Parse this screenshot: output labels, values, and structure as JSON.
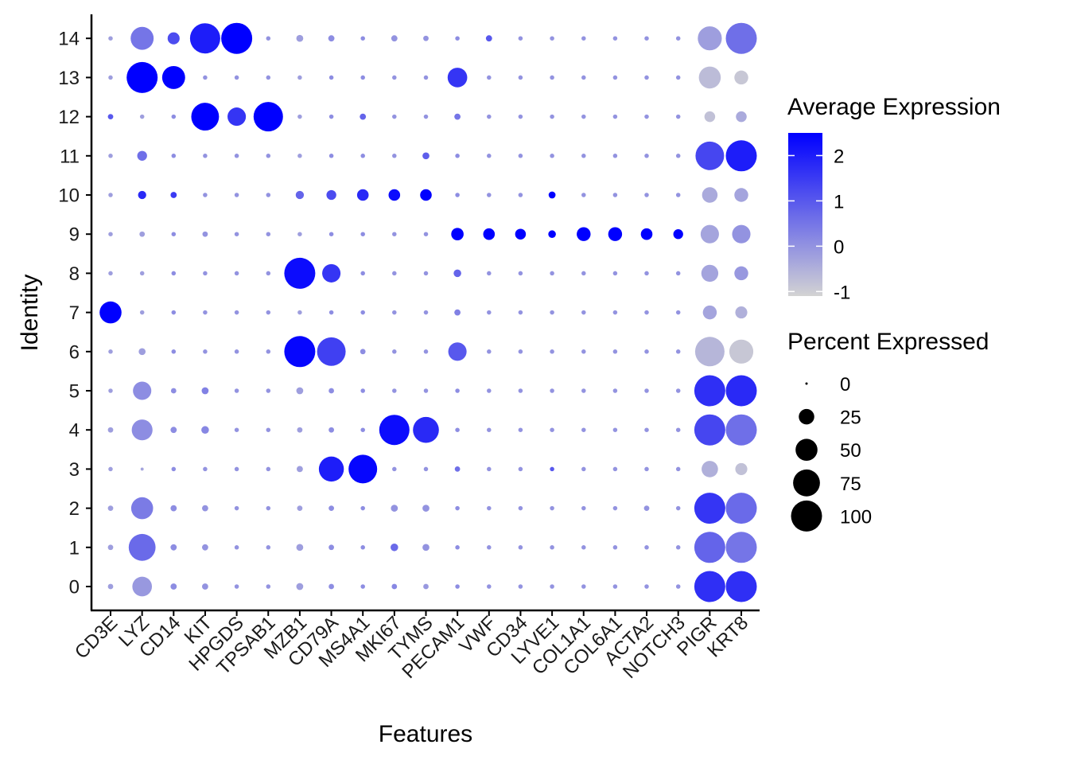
{
  "chart_data": {
    "type": "dotplot",
    "xlabel": "Features",
    "ylabel": "Identity",
    "features": [
      "CD3E",
      "LYZ",
      "CD14",
      "KIT",
      "HPGDS",
      "TPSAB1",
      "MZB1",
      "CD79A",
      "MS4A1",
      "MKI67",
      "TYMS",
      "PECAM1",
      "VWF",
      "CD34",
      "LYVE1",
      "COL1A1",
      "COL6A1",
      "ACTA2",
      "NOTCH3",
      "PIGR",
      "KRT8"
    ],
    "identities": [
      "0",
      "1",
      "2",
      "3",
      "4",
      "5",
      "6",
      "7",
      "8",
      "9",
      "10",
      "11",
      "12",
      "13",
      "14"
    ],
    "color_legend": {
      "title": "Average Expression",
      "low_color": "#d3d3d3",
      "high_color": "#0000ff",
      "range": [
        -1.1,
        2.5
      ],
      "ticks": [
        -1,
        0,
        1,
        2
      ]
    },
    "size_legend": {
      "title": "Percent Expressed",
      "values": [
        0,
        25,
        50,
        75,
        100
      ]
    },
    "percent_expressed": [
      [
        3,
        40,
        4,
        4,
        2,
        2,
        5,
        3,
        2,
        3,
        3,
        2,
        2,
        2,
        2,
        2,
        2,
        2,
        2,
        100,
        100
      ],
      [
        3,
        75,
        4,
        4,
        2,
        2,
        5,
        3,
        2,
        6,
        5,
        2,
        2,
        2,
        2,
        2,
        2,
        2,
        2,
        100,
        100
      ],
      [
        3,
        50,
        4,
        4,
        2,
        2,
        3,
        3,
        2,
        5,
        5,
        2,
        2,
        2,
        2,
        2,
        2,
        3,
        2,
        100,
        100
      ],
      [
        2,
        1,
        2,
        2,
        2,
        2,
        4,
        65,
        85,
        2,
        2,
        3,
        2,
        2,
        2,
        2,
        2,
        2,
        2,
        28,
        15
      ],
      [
        3,
        45,
        4,
        6,
        2,
        2,
        3,
        3,
        2,
        95,
        70,
        2,
        2,
        2,
        2,
        2,
        2,
        2,
        2,
        100,
        100
      ],
      [
        2,
        35,
        3,
        5,
        2,
        2,
        5,
        3,
        2,
        2,
        2,
        2,
        2,
        2,
        2,
        2,
        2,
        2,
        2,
        100,
        100
      ],
      [
        2,
        5,
        2,
        2,
        2,
        2,
        100,
        85,
        3,
        2,
        2,
        35,
        2,
        2,
        2,
        2,
        2,
        2,
        2,
        90,
        60
      ],
      [
        50,
        2,
        2,
        2,
        2,
        2,
        2,
        2,
        2,
        2,
        2,
        4,
        2,
        2,
        2,
        2,
        2,
        2,
        2,
        20,
        15
      ],
      [
        2,
        2,
        2,
        2,
        2,
        2,
        100,
        35,
        2,
        2,
        2,
        6,
        2,
        2,
        2,
        2,
        2,
        2,
        2,
        30,
        20
      ],
      [
        2,
        3,
        2,
        3,
        2,
        2,
        2,
        2,
        2,
        2,
        2,
        16,
        14,
        12,
        6,
        20,
        20,
        14,
        10,
        35,
        35
      ],
      [
        2,
        7,
        4,
        2,
        2,
        2,
        7,
        10,
        14,
        14,
        14,
        2,
        2,
        2,
        5,
        2,
        2,
        2,
        2,
        25,
        20
      ],
      [
        2,
        10,
        2,
        2,
        2,
        2,
        2,
        2,
        2,
        2,
        5,
        2,
        2,
        2,
        2,
        2,
        2,
        2,
        2,
        85,
        100
      ],
      [
        3,
        2,
        2,
        80,
        35,
        90,
        2,
        2,
        4,
        2,
        2,
        4,
        2,
        2,
        2,
        2,
        2,
        2,
        2,
        12,
        12
      ],
      [
        2,
        100,
        55,
        2,
        2,
        2,
        2,
        2,
        2,
        2,
        2,
        40,
        2,
        2,
        2,
        2,
        2,
        2,
        2,
        50,
        20
      ],
      [
        2,
        55,
        15,
        95,
        100,
        2,
        5,
        4,
        2,
        4,
        3,
        2,
        4,
        2,
        2,
        2,
        2,
        2,
        2,
        60,
        100
      ]
    ],
    "average_expression": [
      [
        -0.2,
        -0.1,
        0.1,
        0.0,
        0.0,
        0.0,
        -0.2,
        0.1,
        0.1,
        0.2,
        -0.1,
        0.1,
        0.0,
        0.0,
        0.0,
        0.0,
        0.0,
        0.0,
        0.0,
        1.7,
        1.7
      ],
      [
        -0.2,
        0.7,
        0.1,
        0.0,
        0.0,
        0.0,
        -0.2,
        0.1,
        0.1,
        0.7,
        0.0,
        0.1,
        0.0,
        0.0,
        0.0,
        0.0,
        0.0,
        0.0,
        0.0,
        0.8,
        0.5
      ],
      [
        -0.2,
        0.4,
        0.1,
        0.0,
        0.0,
        0.0,
        -0.2,
        0.1,
        0.1,
        0.0,
        0.0,
        0.1,
        0.0,
        0.0,
        0.0,
        0.0,
        0.0,
        0.0,
        0.0,
        1.6,
        0.7
      ],
      [
        -0.2,
        -0.3,
        0.1,
        0.0,
        0.0,
        0.0,
        -0.2,
        2.0,
        2.4,
        0.0,
        0.0,
        0.6,
        0.0,
        0.0,
        1.0,
        0.0,
        0.0,
        0.0,
        0.0,
        -0.5,
        -0.8
      ],
      [
        -0.2,
        0.1,
        0.1,
        0.2,
        0.0,
        0.0,
        -0.2,
        0.1,
        0.1,
        2.3,
        1.8,
        0.1,
        0.0,
        0.0,
        0.0,
        0.0,
        0.0,
        0.0,
        0.0,
        1.3,
        0.6
      ],
      [
        -0.2,
        0.1,
        0.1,
        0.3,
        0.0,
        0.0,
        -0.2,
        0.1,
        0.1,
        0.0,
        0.0,
        0.1,
        0.0,
        0.0,
        0.0,
        0.0,
        0.0,
        0.0,
        0.0,
        1.7,
        1.8
      ],
      [
        -0.2,
        -0.2,
        0.1,
        0.0,
        0.0,
        0.0,
        2.4,
        1.4,
        0.1,
        0.0,
        0.0,
        1.0,
        0.0,
        0.0,
        0.0,
        0.0,
        0.0,
        0.0,
        0.0,
        -0.6,
        -0.9
      ],
      [
        2.5,
        -0.2,
        0.1,
        0.0,
        0.0,
        0.0,
        -0.2,
        0.1,
        0.1,
        0.0,
        0.0,
        0.3,
        0.0,
        0.0,
        0.0,
        0.0,
        0.0,
        0.0,
        0.0,
        -0.3,
        -0.5
      ],
      [
        -0.2,
        -0.2,
        0.1,
        0.0,
        0.0,
        0.0,
        2.3,
        1.6,
        0.1,
        0.0,
        0.0,
        0.8,
        0.0,
        0.0,
        0.0,
        0.0,
        0.0,
        0.0,
        0.0,
        -0.3,
        -0.1
      ],
      [
        -0.2,
        -0.2,
        0.1,
        0.0,
        0.0,
        0.0,
        -0.2,
        0.1,
        0.1,
        0.0,
        0.0,
        2.5,
        2.5,
        2.5,
        2.5,
        2.5,
        2.5,
        2.5,
        2.5,
        -0.3,
        0.0
      ],
      [
        -0.2,
        1.8,
        1.5,
        0.0,
        0.0,
        0.0,
        0.8,
        1.2,
        1.8,
        2.3,
        2.5,
        0.1,
        0.0,
        0.0,
        2.5,
        0.0,
        0.0,
        0.0,
        0.0,
        -0.4,
        -0.3
      ],
      [
        -0.2,
        0.6,
        0.1,
        0.0,
        0.0,
        0.0,
        -0.2,
        0.1,
        0.1,
        0.0,
        0.9,
        0.1,
        0.0,
        0.0,
        0.0,
        0.0,
        0.0,
        0.0,
        0.0,
        1.3,
        2.0
      ],
      [
        1.0,
        -0.2,
        0.1,
        2.5,
        1.6,
        2.5,
        -0.2,
        0.1,
        0.8,
        0.0,
        0.0,
        0.5,
        0.0,
        0.0,
        0.0,
        0.0,
        0.0,
        0.0,
        0.0,
        -0.8,
        -0.4
      ],
      [
        -0.2,
        2.5,
        2.5,
        0.0,
        0.0,
        0.0,
        -0.2,
        0.1,
        0.1,
        0.0,
        0.0,
        1.6,
        0.0,
        0.0,
        0.0,
        0.0,
        0.0,
        0.0,
        0.0,
        -0.7,
        -0.9
      ],
      [
        -0.2,
        0.5,
        1.2,
        2.0,
        2.5,
        0.0,
        -0.2,
        0.1,
        0.1,
        0.0,
        0.0,
        0.1,
        1.0,
        0.0,
        0.0,
        0.0,
        0.0,
        0.0,
        0.0,
        -0.2,
        0.6
      ]
    ]
  }
}
